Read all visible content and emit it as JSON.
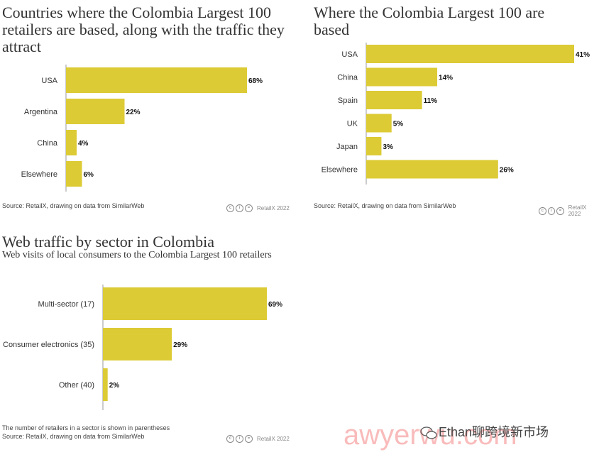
{
  "charts": [
    {
      "title": "Countries where the Colombia Largest 100 retailers are based, along with the traffic they attract",
      "source": "Source: RetailX, drawing on data from SimilarWeb",
      "brand": "RetailX 2022"
    },
    {
      "title": "Where the Colombia Largest 100 are based",
      "source": "Source: RetailX, drawing on data from SimilarWeb",
      "brand": "RetailX 2022"
    },
    {
      "title": "Web traffic by sector in Colombia",
      "subtitle": "Web visits of local consumers to the Colombia Largest 100 retailers",
      "note": "The number of retailers in a sector is shown in parentheses",
      "source": "Source: RetailX, drawing on data from SimilarWeb",
      "brand": "RetailX 2022"
    }
  ],
  "colors": {
    "bar": "#dccb35",
    "axis": "#999999",
    "text": "#333333"
  },
  "watermark": {
    "text": "awyerwu.com",
    "label": "Ethan聊跨境新市场"
  },
  "chart_data": [
    {
      "type": "bar",
      "orientation": "horizontal",
      "title": "Countries where the Colombia Largest 100 retailers are based, along with the traffic they attract",
      "categories": [
        "USA",
        "Argentina",
        "China",
        "Elsewhere"
      ],
      "values": [
        68,
        22,
        4,
        6
      ],
      "value_labels": [
        "68%",
        "22%",
        "4%",
        "6%"
      ],
      "xlim": [
        0,
        75
      ]
    },
    {
      "type": "bar",
      "orientation": "horizontal",
      "title": "Where the Colombia Largest 100 are based",
      "categories": [
        "USA",
        "China",
        "Spain",
        "UK",
        "Japan",
        "Elsewhere"
      ],
      "values": [
        41,
        14,
        11,
        5,
        3,
        26
      ],
      "value_labels": [
        "41%",
        "14%",
        "11%",
        "5%",
        "3%",
        "26%"
      ],
      "xlim": [
        0,
        42
      ]
    },
    {
      "type": "bar",
      "orientation": "horizontal",
      "title": "Web traffic by sector in Colombia",
      "categories": [
        "Multi-sector (17)",
        "Consumer electronics (35)",
        "Other (40)"
      ],
      "values": [
        69,
        29,
        2
      ],
      "value_labels": [
        "69%",
        "29%",
        "2%"
      ],
      "xlim": [
        0,
        72
      ]
    }
  ]
}
